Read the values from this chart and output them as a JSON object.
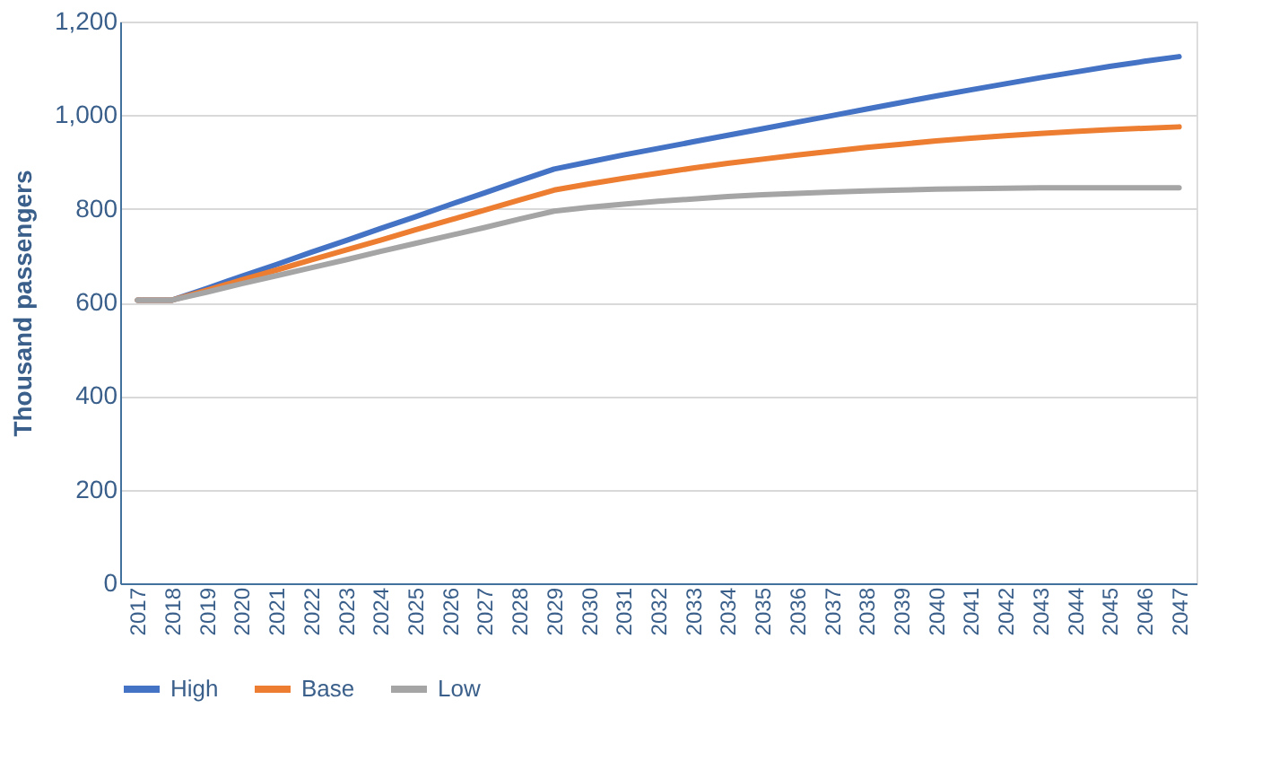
{
  "chart_data": {
    "type": "line",
    "ylabel": "Thousand passengers",
    "categories": [
      "2017",
      "2018",
      "2019",
      "2020",
      "2021",
      "2022",
      "2023",
      "2024",
      "2025",
      "2026",
      "2027",
      "2028",
      "2029",
      "2030",
      "2031",
      "2032",
      "2033",
      "2034",
      "2035",
      "2036",
      "2037",
      "2038",
      "2039",
      "2040",
      "2041",
      "2042",
      "2043",
      "2044",
      "2045",
      "2046",
      "2047"
    ],
    "series": [
      {
        "name": "High",
        "color": "#4472c4",
        "values": [
          605,
          605,
          630,
          656,
          681,
          707,
          732,
          758,
          783,
          809,
          834,
          860,
          885,
          900,
          915,
          929,
          943,
          957,
          971,
          985,
          999,
          1013,
          1027,
          1041,
          1054,
          1067,
          1080,
          1092,
          1104,
          1115,
          1125
        ]
      },
      {
        "name": "Base",
        "color": "#ed7d31",
        "values": [
          605,
          605,
          626,
          648,
          669,
          691,
          712,
          733,
          755,
          776,
          797,
          819,
          840,
          853,
          865,
          876,
          887,
          897,
          906,
          915,
          923,
          931,
          938,
          945,
          951,
          956,
          961,
          965,
          969,
          972,
          975
        ]
      },
      {
        "name": "Low",
        "color": "#a5a5a5",
        "values": [
          605,
          605,
          622,
          640,
          657,
          674,
          691,
          709,
          726,
          743,
          760,
          778,
          795,
          803,
          810,
          816,
          821,
          826,
          830,
          833,
          836,
          838,
          840,
          842,
          843,
          844,
          845,
          845,
          845,
          845,
          845
        ]
      }
    ],
    "ylim": [
      0,
      1200
    ],
    "yticks": [
      0,
      {
        "value": 200,
        "label": "200"
      },
      400,
      600,
      800,
      {
        "value": 1000,
        "label": "1,000"
      },
      {
        "value": 1200,
        "label": "1,200"
      }
    ],
    "grid": "y",
    "legend": "bottom",
    "line_style": "solid",
    "marker": "none"
  }
}
